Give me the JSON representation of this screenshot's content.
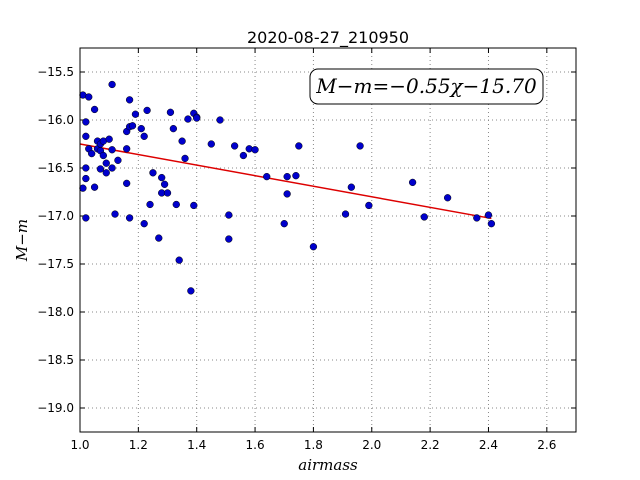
{
  "chart_data": {
    "type": "scatter",
    "title": "2020-08-27_210950",
    "xlabel": "airmass",
    "ylabel": "M−m",
    "xlim": [
      1.0,
      2.7
    ],
    "ylim": [
      -19.25,
      -15.25
    ],
    "y_inverted": true,
    "grid": true,
    "xticks": [
      1.0,
      1.2,
      1.4,
      1.6,
      1.8,
      2.0,
      2.2,
      2.4,
      2.6
    ],
    "xtick_labels": [
      "1.0",
      "1.2",
      "1.4",
      "1.6",
      "1.8",
      "2.0",
      "2.2",
      "2.4",
      "2.6"
    ],
    "yticks": [
      -15.5,
      -16.0,
      -16.5,
      -17.0,
      -17.5,
      -18.0,
      -18.5,
      -19.0
    ],
    "ytick_labels": [
      "−15.5",
      "−16.0",
      "−16.5",
      "−17.0",
      "−17.5",
      "−18.0",
      "−18.5",
      "−19.0"
    ],
    "annotation": "M−m=−0.55χ−15.70",
    "colors": {
      "points": "#0000cc",
      "fit": "#dd0000",
      "grid": "#888888"
    },
    "fit": {
      "slope": -0.55,
      "intercept": -15.7,
      "x_range": [
        1.0,
        2.41
      ]
    },
    "points": {
      "x": [
        1.01,
        1.01,
        1.02,
        1.02,
        1.02,
        1.02,
        1.02,
        1.03,
        1.03,
        1.04,
        1.05,
        1.05,
        1.06,
        1.06,
        1.07,
        1.07,
        1.07,
        1.08,
        1.08,
        1.09,
        1.09,
        1.1,
        1.11,
        1.11,
        1.11,
        1.12,
        1.13,
        1.16,
        1.16,
        1.16,
        1.17,
        1.17,
        1.17,
        1.18,
        1.19,
        1.21,
        1.22,
        1.22,
        1.23,
        1.24,
        1.25,
        1.27,
        1.28,
        1.28,
        1.29,
        1.3,
        1.31,
        1.32,
        1.33,
        1.34,
        1.35,
        1.36,
        1.37,
        1.38,
        1.39,
        1.39,
        1.4,
        1.4,
        1.45,
        1.48,
        1.51,
        1.51,
        1.53,
        1.56,
        1.58,
        1.6,
        1.64,
        1.7,
        1.71,
        1.71,
        1.74,
        1.75,
        1.8,
        1.91,
        1.93,
        1.96,
        1.99,
        2.14,
        2.18,
        2.26,
        2.36,
        2.4,
        2.41
      ],
      "y": [
        -16.71,
        -15.74,
        -16.02,
        -16.17,
        -16.5,
        -16.61,
        -17.02,
        -15.76,
        -16.3,
        -16.35,
        -16.7,
        -15.89,
        -16.22,
        -16.3,
        -16.25,
        -16.32,
        -16.51,
        -16.37,
        -16.22,
        -16.45,
        -16.55,
        -16.2,
        -15.63,
        -16.31,
        -16.5,
        -16.98,
        -16.42,
        -16.12,
        -16.3,
        -16.66,
        -15.79,
        -16.07,
        -17.02,
        -16.06,
        -15.94,
        -16.09,
        -16.17,
        -17.08,
        -15.9,
        -16.88,
        -16.55,
        -17.23,
        -16.6,
        -16.76,
        -16.67,
        -16.76,
        -15.92,
        -16.09,
        -16.88,
        -17.46,
        -16.22,
        -16.4,
        -15.99,
        -17.78,
        -16.89,
        -15.93,
        -15.97,
        -15.98,
        -16.25,
        -16.0,
        -16.99,
        -17.24,
        -16.27,
        -16.37,
        -16.3,
        -16.31,
        -16.59,
        -17.08,
        -16.77,
        -16.59,
        -16.58,
        -16.27,
        -17.32,
        -16.98,
        -16.7,
        -16.27,
        -16.89,
        -16.65,
        -17.01,
        -16.81,
        -17.02,
        -16.99,
        -17.08
      ]
    }
  }
}
